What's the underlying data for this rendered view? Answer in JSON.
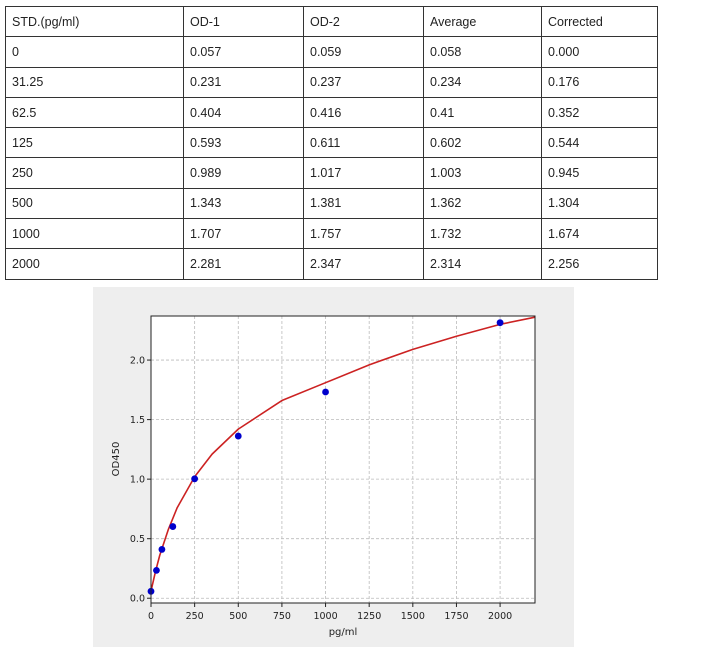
{
  "table": {
    "headers": [
      "STD.(pg/ml)",
      "OD-1",
      "OD-2",
      "Average",
      "Corrected"
    ],
    "rows": [
      [
        "0",
        "0.057",
        "0.059",
        "0.058",
        "0.000"
      ],
      [
        "31.25",
        "0.231",
        "0.237",
        "0.234",
        "0.176"
      ],
      [
        "62.5",
        "0.404",
        "0.416",
        "0.41",
        "0.352"
      ],
      [
        "125",
        "0.593",
        "0.611",
        "0.602",
        "0.544"
      ],
      [
        "250",
        "0.989",
        "1.017",
        "1.003",
        "0.945"
      ],
      [
        "500",
        "1.343",
        "1.381",
        "1.362",
        "1.304"
      ],
      [
        "1000",
        "1.707",
        "1.757",
        "1.732",
        "1.674"
      ],
      [
        "2000",
        "2.281",
        "2.347",
        "2.314",
        "2.256"
      ]
    ]
  },
  "chart_data": {
    "type": "scatter",
    "title": "",
    "xlabel": "pg/ml",
    "ylabel": "OD450",
    "xlim": [
      0,
      2200
    ],
    "ylim": [
      -0.04,
      2.37
    ],
    "xticks": [
      0,
      250,
      500,
      750,
      1000,
      1250,
      1500,
      1750,
      2000
    ],
    "yticks": [
      0.0,
      0.5,
      1.0,
      1.5,
      2.0
    ],
    "ytick_labels": [
      "0.0",
      "0.5",
      "1.0",
      "1.5",
      "2.0"
    ],
    "grid": true,
    "points": {
      "x": [
        0,
        31.25,
        62.5,
        125,
        250,
        500,
        1000,
        2000
      ],
      "y": [
        0.058,
        0.234,
        0.41,
        0.602,
        1.003,
        1.362,
        1.732,
        2.314
      ],
      "color": "#0000cc"
    },
    "fit_curve": {
      "x": [
        0,
        25,
        50,
        100,
        150,
        250,
        350,
        500,
        750,
        1000,
        1250,
        1500,
        1750,
        2000,
        2200
      ],
      "y": [
        0.06,
        0.22,
        0.36,
        0.58,
        0.76,
        1.02,
        1.21,
        1.42,
        1.66,
        1.81,
        1.96,
        2.09,
        2.2,
        2.3,
        2.36
      ],
      "color": "#cc2222"
    }
  }
}
